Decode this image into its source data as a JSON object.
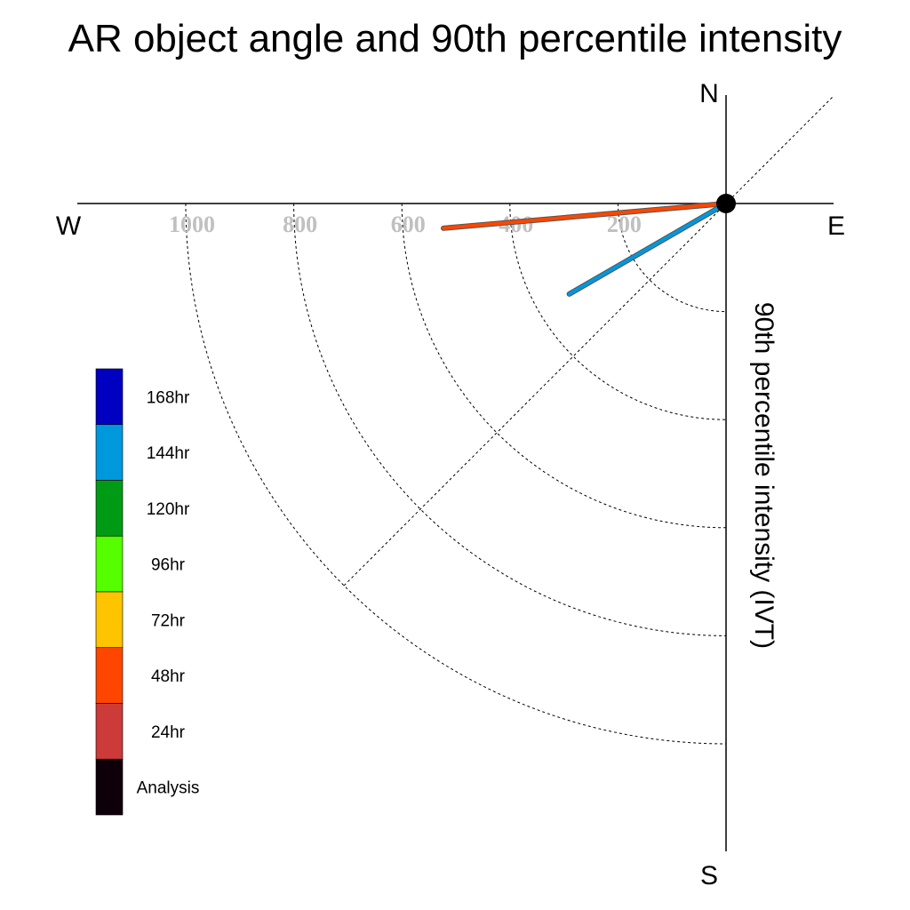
{
  "chart_data": {
    "type": "polar-line",
    "title": "AR object angle and 90th percentile intensity",
    "ylabel": "90th percentile intensity (IVT)",
    "compass": {
      "north": "N",
      "south": "S",
      "east": "E",
      "west": "W"
    },
    "radial_ticks": [
      200,
      400,
      600,
      800,
      1000
    ],
    "rlim": [
      0,
      1200
    ],
    "grid": true,
    "legend_placement": "left",
    "legend": [
      {
        "label": "168hr",
        "color": "#0000c0"
      },
      {
        "label": "144hr",
        "color": "#0098dd"
      },
      {
        "label": "120hr",
        "color": "#009b15"
      },
      {
        "label": "96hr",
        "color": "#55ff00"
      },
      {
        "label": "72hr",
        "color": "#ffc400"
      },
      {
        "label": "48hr",
        "color": "#ff4600"
      },
      {
        "label": "24hr",
        "color": "#cc3a3a"
      },
      {
        "label": "Analysis",
        "color": "#0d0008"
      }
    ],
    "series": [
      {
        "name": "48hr",
        "color": "#ff4600",
        "angle_deg": 265,
        "intensity": 525
      },
      {
        "name": "144hr",
        "color": "#0098dd",
        "angle_deg": 240,
        "intensity": 335
      }
    ]
  }
}
